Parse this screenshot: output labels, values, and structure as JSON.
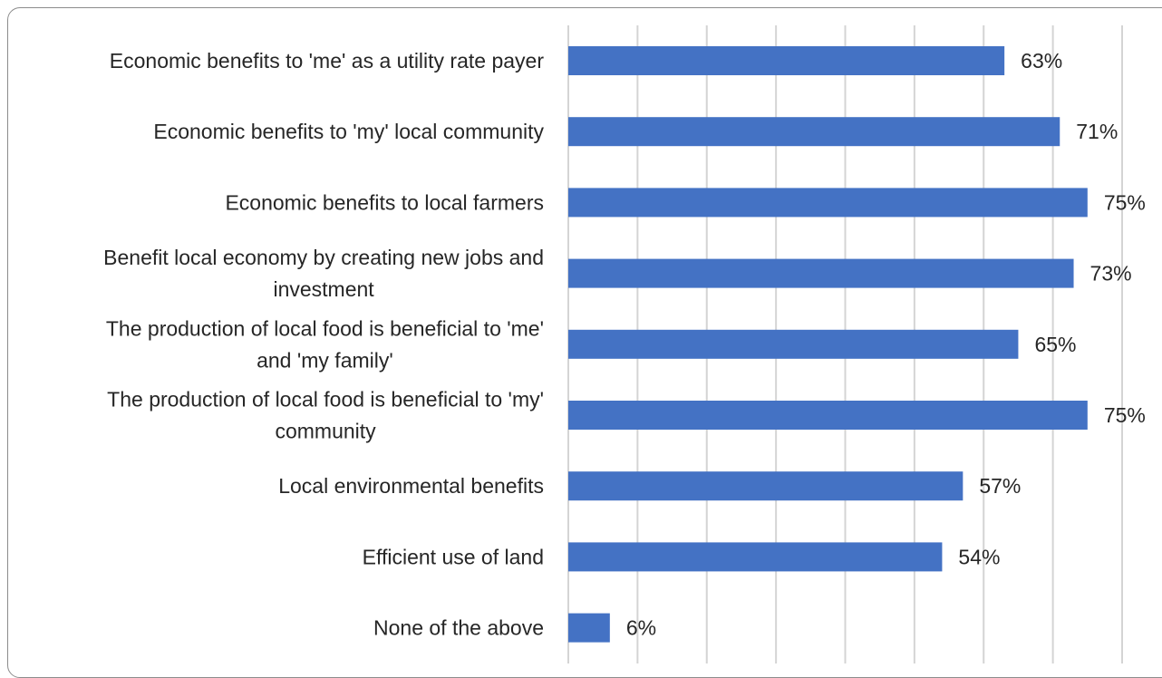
{
  "chart_data": {
    "type": "bar",
    "orientation": "horizontal",
    "categories": [
      [
        "Economic benefits to 'me' as a utility rate payer"
      ],
      [
        "Economic benefits to 'my' local community"
      ],
      [
        "Economic benefits to local farmers"
      ],
      [
        "Benefit local economy by creating new jobs and",
        "investment"
      ],
      [
        "The production of local food is beneficial to 'me'",
        "and 'my family'"
      ],
      [
        "The production of local food is beneficial to 'my'",
        "community"
      ],
      [
        "Local environmental benefits"
      ],
      [
        "Efficient use of land"
      ],
      [
        "None of the above"
      ]
    ],
    "values": [
      63,
      71,
      75,
      73,
      65,
      75,
      57,
      54,
      6
    ],
    "value_labels": [
      "63%",
      "71%",
      "75%",
      "73%",
      "65%",
      "75%",
      "57%",
      "54%",
      "6%"
    ],
    "xlim": [
      0,
      80
    ],
    "grid": true,
    "grid_step": 10,
    "bar_color": "#4472c4",
    "title": "",
    "xlabel": "",
    "ylabel": ""
  }
}
